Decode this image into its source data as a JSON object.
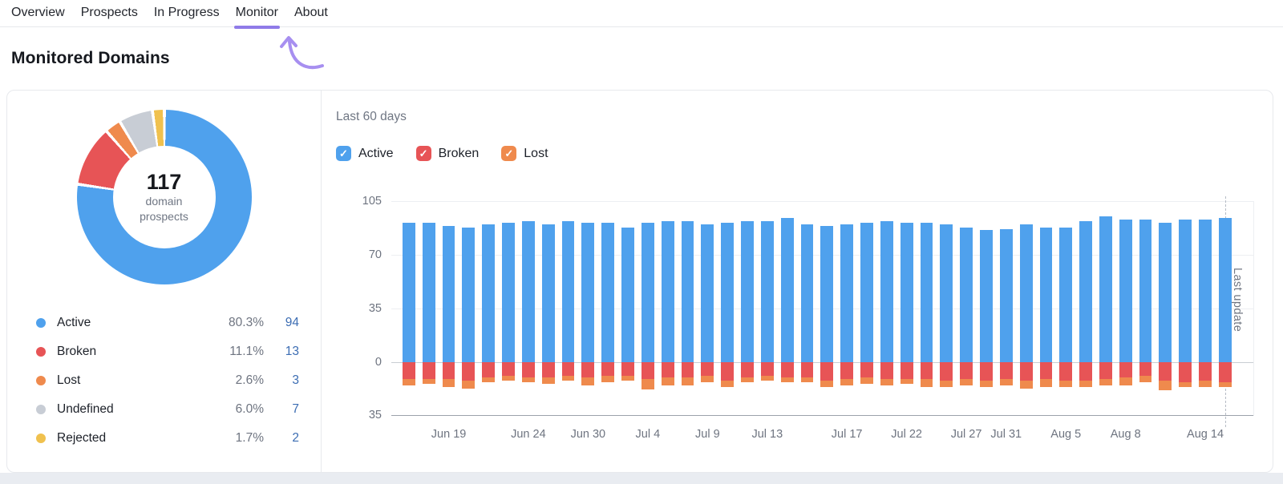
{
  "nav": {
    "items": [
      {
        "label": "Overview",
        "active": false
      },
      {
        "label": "Prospects",
        "active": false
      },
      {
        "label": "In Progress",
        "active": false
      },
      {
        "label": "Monitor",
        "active": true
      },
      {
        "label": "About",
        "active": false
      }
    ]
  },
  "page_title": "Monitored Domains",
  "colors": {
    "active_blue": "#4FA1ED",
    "broken_red": "#E75456",
    "lost_orange": "#EF8A4D",
    "undefined_gray": "#C8CDD5",
    "rejected_yellow": "#F0C14E",
    "accent_purple": "#8F7BE8",
    "arrow_purple": "#A78FF0",
    "count_link_blue": "#3C6DB3"
  },
  "summary_panel": {
    "total": "117",
    "total_sub_line1": "domain",
    "total_sub_line2": "prospects"
  },
  "chart_panel": {
    "title": "Last 60 days",
    "filters": [
      {
        "label": "Active",
        "checked": true,
        "check_glyph": "✓",
        "color_key": "active_blue"
      },
      {
        "label": "Broken",
        "checked": true,
        "check_glyph": "✓",
        "color_key": "broken_red"
      },
      {
        "label": "Lost",
        "checked": true,
        "check_glyph": "✓",
        "color_key": "lost_orange"
      }
    ],
    "last_update_label": "Last update"
  },
  "chart_data": [
    {
      "type": "pie",
      "subtype": "donut",
      "center_value": 117,
      "center_label": "domain prospects",
      "segments": [
        {
          "label": "Active",
          "count": 94,
          "percent_label": "80.3%",
          "color": "#4FA1ED"
        },
        {
          "label": "Broken",
          "count": 13,
          "percent_label": "11.1%",
          "color": "#E75456"
        },
        {
          "label": "Lost",
          "count": 3,
          "percent_label": "2.6%",
          "color": "#EF8A4D"
        },
        {
          "label": "Undefined",
          "count": 7,
          "percent_label": "6.0%",
          "color": "#C8CDD5"
        },
        {
          "label": "Rejected",
          "count": 2,
          "percent_label": "1.7%",
          "color": "#F0C14E"
        }
      ]
    },
    {
      "type": "bar",
      "stacked": true,
      "title": "Last 60 days",
      "bar_count": 42,
      "ylim": [
        -35,
        105
      ],
      "y_ticks": [
        105,
        70,
        35,
        0,
        -35
      ],
      "y_tick_labels": [
        "105",
        "70",
        "35",
        "0",
        "35"
      ],
      "grid": true,
      "legend_position": "top",
      "x_tick_labels": [
        {
          "index": 2,
          "label": "Jun 19"
        },
        {
          "index": 6,
          "label": "Jun 24"
        },
        {
          "index": 9,
          "label": "Jun 30"
        },
        {
          "index": 12,
          "label": "Jul 4"
        },
        {
          "index": 15,
          "label": "Jul 9"
        },
        {
          "index": 18,
          "label": "Jul 13"
        },
        {
          "index": 22,
          "label": "Jul 17"
        },
        {
          "index": 25,
          "label": "Jul 22"
        },
        {
          "index": 28,
          "label": "Jul 27"
        },
        {
          "index": 30,
          "label": "Jul 31"
        },
        {
          "index": 33,
          "label": "Aug 5"
        },
        {
          "index": 36,
          "label": "Aug 8"
        },
        {
          "index": 40,
          "label": "Aug 14"
        }
      ],
      "series": [
        {
          "name": "Active",
          "color": "#4FA1ED",
          "values": [
            91,
            91,
            89,
            88,
            90,
            91,
            92,
            90,
            92,
            91,
            91,
            88,
            91,
            92,
            92,
            90,
            91,
            92,
            92,
            94,
            90,
            89,
            90,
            91,
            92,
            91,
            91,
            90,
            88,
            86,
            87,
            90,
            88,
            88,
            92,
            95,
            93,
            93,
            91,
            93,
            93,
            94
          ]
        },
        {
          "name": "Broken",
          "color": "#E75456",
          "values": [
            -11,
            -11,
            -11,
            -12,
            -10,
            -9,
            -10,
            -10,
            -9,
            -10,
            -9,
            -9,
            -11,
            -10,
            -10,
            -9,
            -12,
            -10,
            -9,
            -10,
            -10,
            -12,
            -11,
            -10,
            -11,
            -11,
            -11,
            -12,
            -11,
            -12,
            -11,
            -12,
            -11,
            -12,
            -12,
            -11,
            -10,
            -9,
            -12,
            -13,
            -12,
            -13
          ]
        },
        {
          "name": "Lost",
          "color": "#EF8A4D",
          "values": [
            -4,
            -3,
            -5,
            -5,
            -3,
            -3,
            -3,
            -4,
            -3,
            -5,
            -4,
            -3,
            -7,
            -5,
            -5,
            -4,
            -4,
            -3,
            -3,
            -3,
            -3,
            -4,
            -4,
            -4,
            -4,
            -3,
            -5,
            -4,
            -4,
            -4,
            -4,
            -5,
            -5,
            -4,
            -4,
            -4,
            -5,
            -4,
            -6,
            -3,
            -4,
            -3
          ]
        }
      ],
      "annotations": [
        {
          "type": "dashed-vertical-line",
          "bar_index": 41,
          "label": "Last update"
        }
      ]
    }
  ]
}
